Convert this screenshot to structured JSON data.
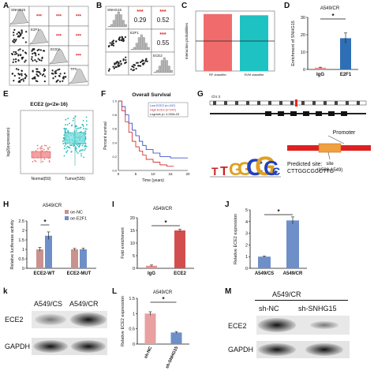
{
  "panels": {
    "A": {
      "label": "A",
      "genes": [
        "SNHG15",
        "E2F1",
        "ECE2",
        "TFN"
      ],
      "stars": "***"
    },
    "B": {
      "label": "B",
      "genes": [
        "SNHG15",
        "E2F1",
        "ECE2"
      ],
      "corr": [
        "0.29",
        "0.52",
        "0.55"
      ],
      "stars": "***"
    },
    "C": {
      "label": "C",
      "ylabel": "Interaction probabilities",
      "xlabels": [
        "RF classifier",
        "SVM classifier"
      ],
      "colors": [
        "#f06c6c",
        "#1ec2c2"
      ]
    },
    "D": {
      "label": "D",
      "title": "A549/CR",
      "ylabel": "Enrichment of SNHG15",
      "xlabels": [
        "IgG",
        "E2F1"
      ],
      "stars": "*",
      "colors": [
        "#e88e8e",
        "#2f6fb5"
      ]
    },
    "E": {
      "label": "E",
      "title": "ECE2 (p<2e-16)",
      "ylabel": "log2(expression)",
      "xlabels": [
        "Normal(59)",
        "Tumor(535)"
      ]
    },
    "F": {
      "label": "F",
      "title": "Overall Survival",
      "ylabel": "Percent survival",
      "xlabel": "Time (years)",
      "legend": [
        "Low ECE2 (n=247)",
        "High ECE2 (n=247)",
        "Logrank p= 4.263e-03"
      ]
    },
    "G": {
      "label": "G",
      "chr": "Chr 3",
      "promoter": "Promoter",
      "predicted": "Predicted site:",
      "sequence": "CTTGGCGCCTTG",
      "site": "site",
      "site_range": "(1538-1549)"
    },
    "H": {
      "label": "H",
      "title": "A549/CR",
      "ylabel": "Relative luciferase activity",
      "legend": [
        "oe-NC",
        "oe-E2F1"
      ],
      "xlabels": [
        "ECE2-WT",
        "ECE2-MUT"
      ],
      "stars": "*",
      "colors": [
        "#c9928e",
        "#6f8fc9"
      ]
    },
    "I": {
      "label": "I",
      "title": "A549/CR",
      "ylabel": "Fold enrichment",
      "xlabels": [
        "IgG",
        "ECE2"
      ],
      "stars": "*"
    },
    "J": {
      "label": "J",
      "ylabel": "Relative ECE2 expression",
      "xlabels": [
        "A549/CS",
        "A549/CR"
      ],
      "stars": "*"
    },
    "K": {
      "label": "k",
      "headers": [
        "A549/CS",
        "A549/CR"
      ],
      "rows": [
        "ECE2",
        "GAPDH"
      ]
    },
    "L": {
      "label": "L",
      "title": "A549/CR",
      "ylabel": "Relative ECE2 expression",
      "xlabels": [
        "sh-NC",
        "sh-SNHG15"
      ],
      "stars": "*"
    },
    "M": {
      "label": "M",
      "title": "A549/CR",
      "headers": [
        "sh-NC",
        "sh-SNHG15"
      ],
      "rows": [
        "ECE2",
        "GAPDH"
      ]
    }
  },
  "chart_data": [
    {
      "type": "bar",
      "panel": "C",
      "categories": [
        "RF classifier",
        "SVM classifier"
      ],
      "values": [
        0.95,
        0.93
      ],
      "ylim": [
        0,
        1
      ],
      "hline": 0.5
    },
    {
      "type": "bar",
      "panel": "D",
      "title": "A549/CR",
      "categories": [
        "IgG",
        "E2F1"
      ],
      "values": [
        1,
        18
      ],
      "errors": [
        0.3,
        3
      ],
      "ylim": [
        0,
        30
      ],
      "yticks": [
        0,
        10,
        20,
        30
      ],
      "ylabel": "Enrichment of SNHG15"
    },
    {
      "type": "bar",
      "panel": "H",
      "title": "A549/CR",
      "categories": [
        "ECE2-WT",
        "ECE2-MUT"
      ],
      "series": [
        {
          "name": "oe-NC",
          "values": [
            1.0,
            1.0
          ],
          "errors": [
            0.1,
            0.05
          ]
        },
        {
          "name": "oe-E2F1",
          "values": [
            1.72,
            1.0
          ],
          "errors": [
            0.2,
            0.06
          ]
        }
      ],
      "ylim": [
        0,
        2.5
      ],
      "yticks": [
        0.0,
        0.5,
        1.0,
        1.5,
        2.0,
        2.5
      ],
      "ylabel": "Relative luciferase activity"
    },
    {
      "type": "bar",
      "panel": "I",
      "title": "A549/CR",
      "categories": [
        "IgG",
        "ECE2"
      ],
      "values": [
        1,
        15
      ],
      "errors": [
        0.3,
        0.5
      ],
      "ylim": [
        0,
        20
      ],
      "yticks": [
        0,
        5,
        10,
        15,
        20
      ],
      "ylabel": "Fold enrichment"
    },
    {
      "type": "bar",
      "panel": "J",
      "categories": [
        "A549/CS",
        "A549/CR"
      ],
      "values": [
        1.0,
        4.1
      ],
      "errors": [
        0.05,
        0.3
      ],
      "ylim": [
        0,
        5
      ],
      "yticks": [
        0,
        1,
        2,
        3,
        4,
        5
      ],
      "ylabel": "Relative ECE2 expression"
    },
    {
      "type": "bar",
      "panel": "L",
      "title": "A549/CR",
      "categories": [
        "sh-NC",
        "sh-SNHG15"
      ],
      "values": [
        1.0,
        0.38
      ],
      "errors": [
        0.06,
        0.03
      ],
      "ylim": [
        0,
        1.5
      ],
      "yticks": [
        0.0,
        0.5,
        1.0,
        1.5
      ],
      "ylabel": "Relative ECE2 expression"
    }
  ]
}
